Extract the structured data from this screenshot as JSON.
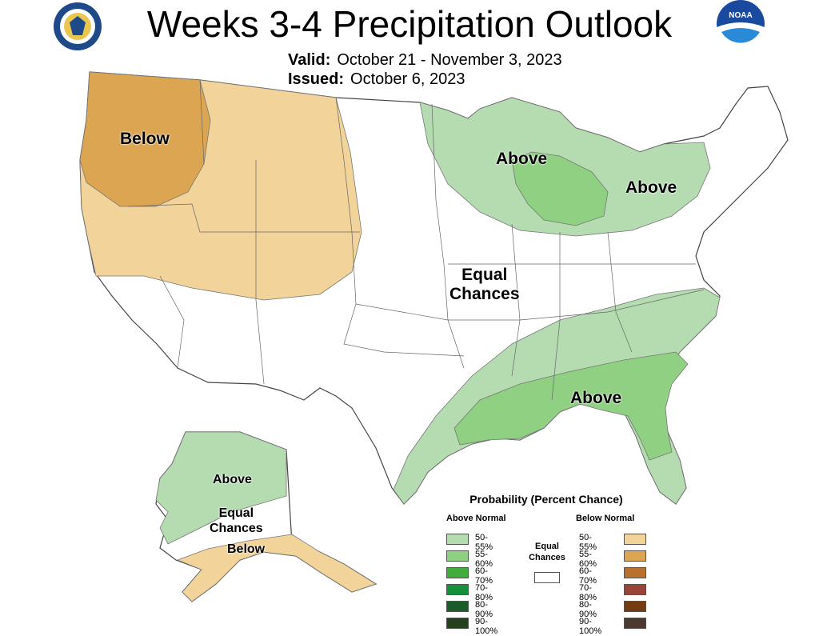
{
  "header": {
    "title": "Weeks 3-4 Precipitation Outlook",
    "valid_label": "Valid:",
    "valid_value": "October 21 - November 3, 2023",
    "issued_label": "Issued:",
    "issued_value": "October 6, 2023"
  },
  "logos": {
    "left": "department-of-commerce-seal",
    "right": "noaa-logo"
  },
  "map_labels": {
    "west_below": "Below",
    "greatlakes_above": "Above",
    "northeast_above": "Above",
    "center_equal": "Equal\nChances",
    "southeast_above": "Above",
    "alaska_above": "Above",
    "alaska_equal": "Equal\nChances",
    "alaska_below": "Below"
  },
  "legend": {
    "title": "Probability (Percent Chance)",
    "above_header": "Above Normal",
    "below_header": "Below Normal",
    "equal_label": "Equal\nChances",
    "above": [
      {
        "label": "50-55%",
        "color": "#b4dcb0"
      },
      {
        "label": "55-60%",
        "color": "#8fd082"
      },
      {
        "label": "60-70%",
        "color": "#41ad3c"
      },
      {
        "label": "70-80%",
        "color": "#14913a"
      },
      {
        "label": "80-90%",
        "color": "#1c5c2a"
      },
      {
        "label": "90-100%",
        "color": "#24401c"
      }
    ],
    "below": [
      {
        "label": "50-55%",
        "color": "#f2d49a"
      },
      {
        "label": "55-60%",
        "color": "#dca552"
      },
      {
        "label": "60-70%",
        "color": "#b8702c"
      },
      {
        "label": "70-80%",
        "color": "#9a4438"
      },
      {
        "label": "80-90%",
        "color": "#743c10"
      },
      {
        "label": "90-100%",
        "color": "#4c3a30"
      }
    ]
  },
  "colors": {
    "above_50_55": "#b4dcb0",
    "above_55_60": "#8fd082",
    "below_50_55": "#f2d49a",
    "below_55_60": "#dca552"
  }
}
